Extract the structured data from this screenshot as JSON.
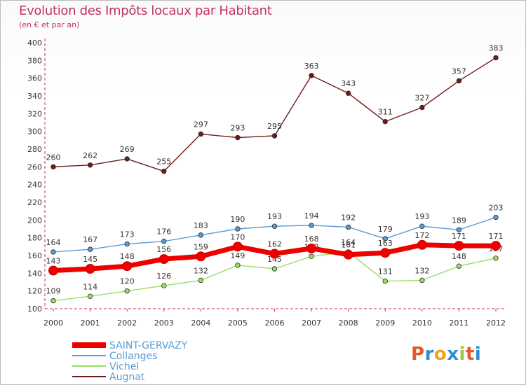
{
  "title": "Evolution des Impôts locaux par Habitant",
  "subtitle": "(en € et par an)",
  "logo": {
    "text": "Proxiti",
    "colors": [
      "#e8562a",
      "#2e8bd8",
      "#f2a21a",
      "#2e8bd8",
      "#9bc53d",
      "#e8562a",
      "#2e8bd8"
    ]
  },
  "colors": {
    "title": "#c0306a",
    "axis": "#c0306a"
  },
  "chart_data": {
    "type": "line",
    "x": [
      "2000",
      "2001",
      "2002",
      "2003",
      "2004",
      "2005",
      "2006",
      "2007",
      "2008",
      "2009",
      "2010",
      "2011",
      "2012"
    ],
    "ylim": [
      100,
      400
    ],
    "yticks": [
      100,
      120,
      140,
      160,
      180,
      200,
      220,
      240,
      260,
      280,
      300,
      320,
      340,
      360,
      380,
      400
    ],
    "grid": false,
    "legend": "bottom-left",
    "series": [
      {
        "name": "SAINT-GERVAZY",
        "color": "#ee0000",
        "values": [
          143,
          145,
          148,
          156,
          159,
          170,
          162,
          168,
          161,
          163,
          172,
          171,
          171
        ],
        "labels": [
          "143",
          "145",
          "148",
          "156",
          "159",
          "170",
          "162",
          "168",
          "161",
          "163",
          "172",
          "171",
          "171"
        ]
      },
      {
        "name": "Collanges",
        "color": "#5b9bd5",
        "values": [
          164,
          167,
          173,
          176,
          183,
          190,
          193,
          194,
          192,
          179,
          193,
          189,
          203
        ],
        "labels": [
          "164",
          "167",
          "173",
          "176",
          "183",
          "190",
          "193",
          "194",
          "192",
          "179",
          "193",
          "189",
          "203"
        ]
      },
      {
        "name": "Vichel",
        "color": "#99dd66",
        "values": [
          109,
          114,
          120,
          126,
          132,
          149,
          145,
          159,
          164,
          131,
          132,
          148,
          157
        ],
        "labels": [
          "109",
          "114",
          "120",
          "126",
          "132",
          "149",
          "145",
          "159",
          "164",
          "131",
          "132",
          "148",
          "157"
        ]
      },
      {
        "name": "Augnat",
        "color": "#6e1a1a",
        "values": [
          260,
          262,
          269,
          255,
          297,
          293,
          295,
          363,
          343,
          311,
          327,
          357,
          383
        ],
        "labels": [
          "260",
          "262",
          "269",
          "255",
          "297",
          "293",
          "295",
          "363",
          "343",
          "311",
          "327",
          "357",
          "383"
        ]
      }
    ]
  }
}
